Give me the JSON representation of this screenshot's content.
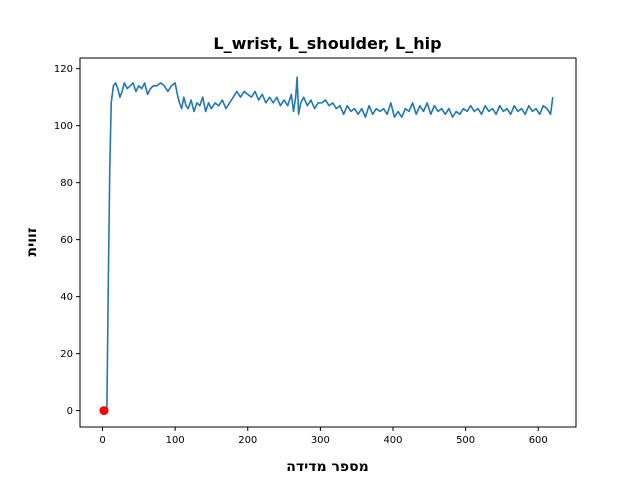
{
  "chart_data": {
    "type": "line",
    "title": "L_wrist, L_shoulder, L_hip",
    "xlabel": "מספר מדידה",
    "ylabel": "זווית",
    "xlim": [
      -31,
      652
    ],
    "ylim": [
      -5.75,
      123.75
    ],
    "xticks": [
      0,
      100,
      200,
      300,
      400,
      500,
      600
    ],
    "yticks": [
      0,
      20,
      40,
      60,
      80,
      100,
      120
    ],
    "grid": false,
    "colors": {
      "line": "#1f77b4",
      "marker": "#ff0000"
    },
    "series": [
      {
        "type": "line",
        "points": [
          [
            0,
            0
          ],
          [
            6,
            0
          ],
          [
            8,
            45
          ],
          [
            10,
            85
          ],
          [
            12,
            108
          ],
          [
            15,
            114
          ],
          [
            18,
            115
          ],
          [
            21,
            113
          ],
          [
            24,
            110
          ],
          [
            27,
            112
          ],
          [
            30,
            115
          ],
          [
            34,
            113
          ],
          [
            38,
            114
          ],
          [
            42,
            115
          ],
          [
            46,
            112
          ],
          [
            50,
            114
          ],
          [
            54,
            113
          ],
          [
            58,
            115
          ],
          [
            62,
            111
          ],
          [
            66,
            113
          ],
          [
            70,
            114
          ],
          [
            75,
            114
          ],
          [
            80,
            115
          ],
          [
            85,
            114
          ],
          [
            90,
            112
          ],
          [
            95,
            114
          ],
          [
            100,
            115
          ],
          [
            103,
            111
          ],
          [
            106,
            108
          ],
          [
            109,
            106
          ],
          [
            112,
            110
          ],
          [
            115,
            107
          ],
          [
            118,
            106
          ],
          [
            122,
            109
          ],
          [
            126,
            105
          ],
          [
            130,
            108
          ],
          [
            134,
            107
          ],
          [
            138,
            110
          ],
          [
            142,
            105
          ],
          [
            146,
            108
          ],
          [
            150,
            106
          ],
          [
            155,
            108
          ],
          [
            160,
            107
          ],
          [
            165,
            109
          ],
          [
            170,
            106
          ],
          [
            175,
            108
          ],
          [
            180,
            110
          ],
          [
            185,
            112
          ],
          [
            190,
            110
          ],
          [
            195,
            112
          ],
          [
            200,
            111
          ],
          [
            205,
            110
          ],
          [
            210,
            112
          ],
          [
            215,
            109
          ],
          [
            220,
            111
          ],
          [
            225,
            108
          ],
          [
            230,
            110
          ],
          [
            235,
            108
          ],
          [
            240,
            110
          ],
          [
            245,
            107
          ],
          [
            250,
            109
          ],
          [
            255,
            107
          ],
          [
            260,
            111
          ],
          [
            263,
            105
          ],
          [
            266,
            110
          ],
          [
            268,
            117
          ],
          [
            270,
            104
          ],
          [
            273,
            108
          ],
          [
            277,
            110
          ],
          [
            282,
            107
          ],
          [
            287,
            109
          ],
          [
            292,
            106
          ],
          [
            297,
            108
          ],
          [
            302,
            108
          ],
          [
            307,
            109
          ],
          [
            312,
            107
          ],
          [
            317,
            108
          ],
          [
            322,
            106
          ],
          [
            327,
            107
          ],
          [
            332,
            104
          ],
          [
            337,
            107
          ],
          [
            342,
            105
          ],
          [
            347,
            106
          ],
          [
            352,
            104
          ],
          [
            357,
            106
          ],
          [
            362,
            103
          ],
          [
            367,
            107
          ],
          [
            372,
            104
          ],
          [
            377,
            106
          ],
          [
            382,
            105
          ],
          [
            387,
            106
          ],
          [
            392,
            104
          ],
          [
            397,
            108
          ],
          [
            402,
            103
          ],
          [
            407,
            105
          ],
          [
            412,
            103
          ],
          [
            417,
            106
          ],
          [
            422,
            105
          ],
          [
            427,
            108
          ],
          [
            432,
            104
          ],
          [
            437,
            107
          ],
          [
            442,
            105
          ],
          [
            447,
            108
          ],
          [
            452,
            104
          ],
          [
            457,
            107
          ],
          [
            462,
            105
          ],
          [
            467,
            106
          ],
          [
            472,
            104
          ],
          [
            477,
            106
          ],
          [
            482,
            103
          ],
          [
            487,
            105
          ],
          [
            492,
            104
          ],
          [
            497,
            106
          ],
          [
            502,
            105
          ],
          [
            507,
            107
          ],
          [
            512,
            105
          ],
          [
            517,
            106
          ],
          [
            522,
            104
          ],
          [
            527,
            107
          ],
          [
            532,
            105
          ],
          [
            537,
            106
          ],
          [
            542,
            104
          ],
          [
            547,
            107
          ],
          [
            552,
            105
          ],
          [
            557,
            106
          ],
          [
            562,
            104
          ],
          [
            567,
            107
          ],
          [
            572,
            105
          ],
          [
            577,
            106
          ],
          [
            582,
            104
          ],
          [
            587,
            107
          ],
          [
            592,
            105
          ],
          [
            597,
            106
          ],
          [
            602,
            104
          ],
          [
            607,
            107
          ],
          [
            612,
            106
          ],
          [
            617,
            104
          ],
          [
            620,
            110
          ]
        ]
      },
      {
        "type": "scatter",
        "points": [
          [
            2,
            0
          ]
        ]
      }
    ]
  }
}
